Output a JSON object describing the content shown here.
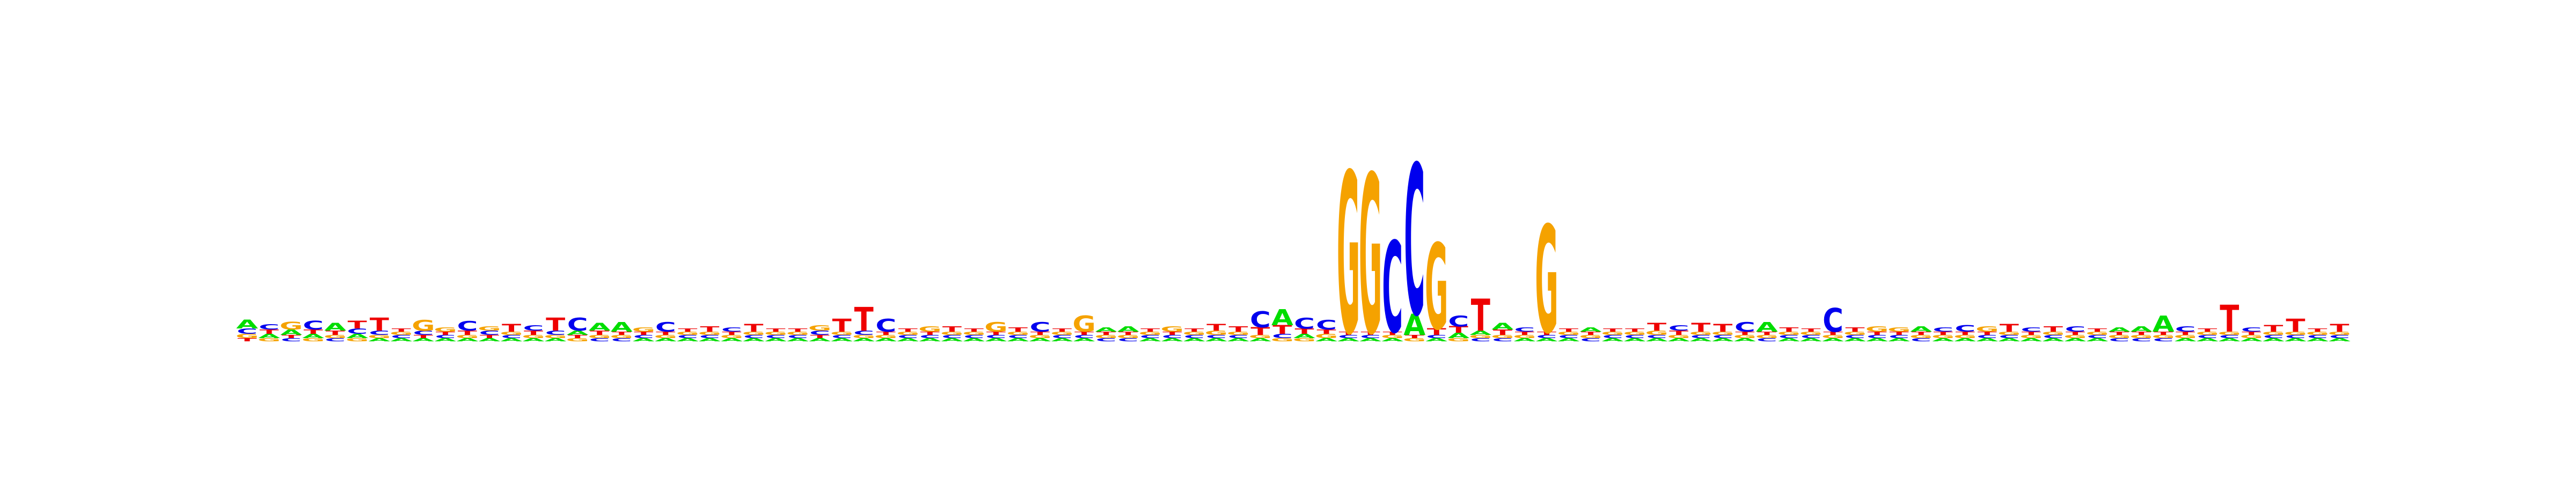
{
  "chart_data": {
    "type": "sequence-logo",
    "title": "",
    "xlabel": "",
    "ylabel": "",
    "grid": false,
    "alphabet": [
      "A",
      "C",
      "G",
      "T"
    ],
    "colors": {
      "A": "#00dd00",
      "C": "#0000ee",
      "G": "#f5a200",
      "T": "#ee0000"
    },
    "ylim": [
      0,
      2
    ],
    "positions": [
      {
        "A": 0.08,
        "C": 0.05,
        "G": 0.04,
        "T": 0.03
      },
      {
        "A": 0.04,
        "C": 0.05,
        "G": 0.03,
        "T": 0.04
      },
      {
        "A": 0.05,
        "C": 0.03,
        "G": 0.07,
        "T": 0.03
      },
      {
        "A": 0.04,
        "C": 0.08,
        "G": 0.03,
        "T": 0.04
      },
      {
        "A": 0.07,
        "C": 0.03,
        "G": 0.03,
        "T": 0.04
      },
      {
        "A": 0.04,
        "C": 0.05,
        "G": 0.03,
        "T": 0.07
      },
      {
        "A": 0.03,
        "C": 0.04,
        "G": 0.03,
        "T": 0.12
      },
      {
        "A": 0.03,
        "C": 0.03,
        "G": 0.03,
        "T": 0.03
      },
      {
        "A": 0.03,
        "C": 0.04,
        "G": 0.1,
        "T": 0.03
      },
      {
        "A": 0.03,
        "C": 0.03,
        "G": 0.04,
        "T": 0.03
      },
      {
        "A": 0.03,
        "C": 0.09,
        "G": 0.03,
        "T": 0.04
      },
      {
        "A": 0.03,
        "C": 0.04,
        "G": 0.04,
        "T": 0.03
      },
      {
        "A": 0.03,
        "C": 0.03,
        "G": 0.03,
        "T": 0.07
      },
      {
        "A": 0.03,
        "C": 0.05,
        "G": 0.03,
        "T": 0.04
      },
      {
        "A": 0.03,
        "C": 0.04,
        "G": 0.03,
        "T": 0.12
      },
      {
        "A": 0.04,
        "C": 0.12,
        "G": 0.03,
        "T": 0.03
      },
      {
        "A": 0.07,
        "C": 0.03,
        "G": 0.03,
        "T": 0.04
      },
      {
        "A": 0.09,
        "C": 0.03,
        "G": 0.03,
        "T": 0.03
      },
      {
        "A": 0.03,
        "C": 0.03,
        "G": 0.04,
        "T": 0.03
      },
      {
        "A": 0.03,
        "C": 0.09,
        "G": 0.03,
        "T": 0.03
      },
      {
        "A": 0.03,
        "C": 0.03,
        "G": 0.03,
        "T": 0.03
      },
      {
        "A": 0.03,
        "C": 0.03,
        "G": 0.03,
        "T": 0.05
      },
      {
        "A": 0.03,
        "C": 0.04,
        "G": 0.03,
        "T": 0.03
      },
      {
        "A": 0.03,
        "C": 0.03,
        "G": 0.03,
        "T": 0.07
      },
      {
        "A": 0.03,
        "C": 0.03,
        "G": 0.03,
        "T": 0.03
      },
      {
        "A": 0.03,
        "C": 0.03,
        "G": 0.03,
        "T": 0.03
      },
      {
        "A": 0.03,
        "C": 0.04,
        "G": 0.05,
        "T": 0.03
      },
      {
        "A": 0.03,
        "C": 0.03,
        "G": 0.03,
        "T": 0.12
      },
      {
        "A": 0.03,
        "C": 0.04,
        "G": 0.03,
        "T": 0.22
      },
      {
        "A": 0.03,
        "C": 0.12,
        "G": 0.03,
        "T": 0.03
      },
      {
        "A": 0.03,
        "C": 0.03,
        "G": 0.03,
        "T": 0.03
      },
      {
        "A": 0.03,
        "C": 0.03,
        "G": 0.05,
        "T": 0.03
      },
      {
        "A": 0.03,
        "C": 0.03,
        "G": 0.03,
        "T": 0.05
      },
      {
        "A": 0.03,
        "C": 0.03,
        "G": 0.03,
        "T": 0.03
      },
      {
        "A": 0.03,
        "C": 0.03,
        "G": 0.09,
        "T": 0.03
      },
      {
        "A": 0.03,
        "C": 0.03,
        "G": 0.03,
        "T": 0.04
      },
      {
        "A": 0.03,
        "C": 0.09,
        "G": 0.03,
        "T": 0.03
      },
      {
        "A": 0.03,
        "C": 0.03,
        "G": 0.03,
        "T": 0.03
      },
      {
        "A": 0.03,
        "C": 0.03,
        "G": 0.15,
        "T": 0.03
      },
      {
        "A": 0.04,
        "C": 0.03,
        "G": 0.03,
        "T": 0.03
      },
      {
        "A": 0.05,
        "C": 0.03,
        "G": 0.03,
        "T": 0.03
      },
      {
        "A": 0.03,
        "C": 0.03,
        "G": 0.03,
        "T": 0.03
      },
      {
        "A": 0.03,
        "C": 0.03,
        "G": 0.05,
        "T": 0.03
      },
      {
        "A": 0.03,
        "C": 0.03,
        "G": 0.03,
        "T": 0.03
      },
      {
        "A": 0.03,
        "C": 0.03,
        "G": 0.04,
        "T": 0.06
      },
      {
        "A": 0.03,
        "C": 0.03,
        "G": 0.03,
        "T": 0.05
      },
      {
        "A": 0.03,
        "C": 0.15,
        "G": 0.03,
        "T": 0.07
      },
      {
        "A": 0.15,
        "C": 0.04,
        "G": 0.03,
        "T": 0.08
      },
      {
        "A": 0.04,
        "C": 0.1,
        "G": 0.03,
        "T": 0.05
      },
      {
        "A": 0.03,
        "C": 0.09,
        "G": 0.04,
        "T": 0.04
      },
      {
        "A": 0.03,
        "C": 0.03,
        "G": 1.5,
        "T": 0.03
      },
      {
        "A": 0.03,
        "C": 0.03,
        "G": 1.48,
        "T": 0.03
      },
      {
        "A": 0.03,
        "C": 0.85,
        "G": 0.03,
        "T": 0.03
      },
      {
        "A": 0.2,
        "C": 1.4,
        "G": 0.03,
        "T": 0.03
      },
      {
        "A": 0.03,
        "C": 0.03,
        "G": 0.8,
        "T": 0.06
      },
      {
        "A": 0.05,
        "C": 0.1,
        "G": 0.03,
        "T": 0.06
      },
      {
        "A": 0.04,
        "C": 0.03,
        "G": 0.03,
        "T": 0.3
      },
      {
        "A": 0.06,
        "C": 0.03,
        "G": 0.03,
        "T": 0.05
      },
      {
        "A": 0.03,
        "C": 0.04,
        "G": 0.03,
        "T": 0.03
      },
      {
        "A": 0.03,
        "C": 0.03,
        "G": 1.0,
        "T": 0.03
      },
      {
        "A": 0.03,
        "C": 0.03,
        "G": 0.03,
        "T": 0.03
      },
      {
        "A": 0.04,
        "C": 0.03,
        "G": 0.03,
        "T": 0.03
      },
      {
        "A": 0.03,
        "C": 0.03,
        "G": 0.03,
        "T": 0.03
      },
      {
        "A": 0.03,
        "C": 0.03,
        "G": 0.03,
        "T": 0.03
      },
      {
        "A": 0.03,
        "C": 0.03,
        "G": 0.04,
        "T": 0.07
      },
      {
        "A": 0.03,
        "C": 0.05,
        "G": 0.03,
        "T": 0.04
      },
      {
        "A": 0.03,
        "C": 0.03,
        "G": 0.03,
        "T": 0.08
      },
      {
        "A": 0.03,
        "C": 0.03,
        "G": 0.03,
        "T": 0.07
      },
      {
        "A": 0.03,
        "C": 0.09,
        "G": 0.03,
        "T": 0.03
      },
      {
        "A": 0.09,
        "C": 0.03,
        "G": 0.03,
        "T": 0.03
      },
      {
        "A": 0.03,
        "C": 0.03,
        "G": 0.03,
        "T": 0.04
      },
      {
        "A": 0.03,
        "C": 0.03,
        "G": 0.03,
        "T": 0.03
      },
      {
        "A": 0.03,
        "C": 0.22,
        "G": 0.03,
        "T": 0.03
      },
      {
        "A": 0.03,
        "C": 0.03,
        "G": 0.03,
        "T": 0.04
      },
      {
        "A": 0.03,
        "C": 0.03,
        "G": 0.05,
        "T": 0.03
      },
      {
        "A": 0.03,
        "C": 0.03,
        "G": 0.04,
        "T": 0.03
      },
      {
        "A": 0.05,
        "C": 0.03,
        "G": 0.03,
        "T": 0.03
      },
      {
        "A": 0.03,
        "C": 0.04,
        "G": 0.03,
        "T": 0.03
      },
      {
        "A": 0.03,
        "C": 0.06,
        "G": 0.03,
        "T": 0.03
      },
      {
        "A": 0.03,
        "C": 0.03,
        "G": 0.05,
        "T": 0.03
      },
      {
        "A": 0.03,
        "C": 0.03,
        "G": 0.03,
        "T": 0.07
      },
      {
        "A": 0.03,
        "C": 0.04,
        "G": 0.03,
        "T": 0.03
      },
      {
        "A": 0.03,
        "C": 0.03,
        "G": 0.03,
        "T": 0.05
      },
      {
        "A": 0.03,
        "C": 0.05,
        "G": 0.03,
        "T": 0.03
      },
      {
        "A": 0.03,
        "C": 0.03,
        "G": 0.03,
        "T": 0.03
      },
      {
        "A": 0.04,
        "C": 0.03,
        "G": 0.03,
        "T": 0.03
      },
      {
        "A": 0.05,
        "C": 0.03,
        "G": 0.03,
        "T": 0.03
      },
      {
        "A": 0.15,
        "C": 0.03,
        "G": 0.03,
        "T": 0.03
      },
      {
        "A": 0.03,
        "C": 0.05,
        "G": 0.03,
        "T": 0.03
      },
      {
        "A": 0.03,
        "C": 0.03,
        "G": 0.03,
        "T": 0.03
      },
      {
        "A": 0.03,
        "C": 0.03,
        "G": 0.03,
        "T": 0.25
      },
      {
        "A": 0.03,
        "C": 0.04,
        "G": 0.03,
        "T": 0.03
      },
      {
        "A": 0.03,
        "C": 0.03,
        "G": 0.03,
        "T": 0.06
      },
      {
        "A": 0.03,
        "C": 0.03,
        "G": 0.03,
        "T": 0.12
      },
      {
        "A": 0.03,
        "C": 0.03,
        "G": 0.03,
        "T": 0.03
      },
      {
        "A": 0.03,
        "C": 0.03,
        "G": 0.03,
        "T": 0.07
      }
    ]
  }
}
